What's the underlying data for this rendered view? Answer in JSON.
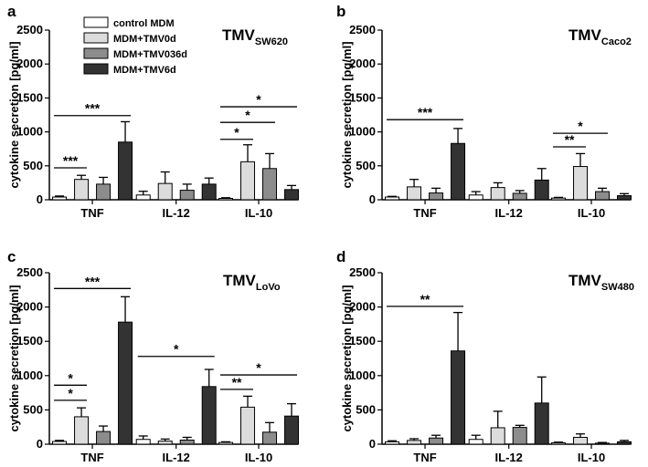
{
  "figure": {
    "colors": [
      "#ffffff",
      "#dcdcdc",
      "#8c8c8c",
      "#333333"
    ]
  },
  "legend": [
    "control MDM",
    "MDM+TMV0d",
    "MDM+TMV036d",
    "MDM+TMV6d"
  ],
  "chart_data": [
    {
      "type": "bar",
      "panel_label": "a",
      "title_main": "TMV",
      "title_sub": "SW620",
      "ylabel": "cytokine secretion [pg/ml]",
      "ylim": [
        0,
        2500
      ],
      "yticks": [
        "0",
        "500",
        "1000",
        "1500",
        "2000",
        "2500"
      ],
      "categories": [
        "TNF",
        "IL-12",
        "IL-10"
      ],
      "series": [
        {
          "name": "control MDM",
          "values": [
            40,
            70,
            20
          ],
          "errors": [
            15,
            55,
            10
          ]
        },
        {
          "name": "MDM+TMV0d",
          "values": [
            300,
            240,
            560
          ],
          "errors": [
            60,
            170,
            250
          ]
        },
        {
          "name": "MDM+TMV036d",
          "values": [
            230,
            140,
            460
          ],
          "errors": [
            100,
            90,
            220
          ]
        },
        {
          "name": "MDM+TMV6d",
          "values": [
            850,
            230,
            150
          ],
          "errors": [
            300,
            90,
            60
          ]
        }
      ],
      "significance": [
        {
          "group": 0,
          "from": 0,
          "to": 1,
          "label": "***",
          "y": 470
        },
        {
          "group": 0,
          "from": 0,
          "to": 3,
          "label": "***",
          "y": 1240
        },
        {
          "group": 2,
          "from": 0,
          "to": 1,
          "label": "*",
          "y": 890
        },
        {
          "group": 2,
          "from": 0,
          "to": 2,
          "label": "*",
          "y": 1140
        },
        {
          "group": 2,
          "from": 0,
          "to": 3,
          "label": "*",
          "y": 1370
        }
      ]
    },
    {
      "type": "bar",
      "panel_label": "b",
      "title_main": "TMV",
      "title_sub": "Caco2",
      "ylabel": "cytokine secretion [pg/ml]",
      "ylim": [
        0,
        2500
      ],
      "yticks": [
        "0",
        "500",
        "1000",
        "1500",
        "2000",
        "2500"
      ],
      "categories": [
        "TNF",
        "IL-12",
        "IL-10"
      ],
      "series": [
        {
          "name": "control MDM",
          "values": [
            40,
            70,
            25
          ],
          "errors": [
            10,
            50,
            10
          ]
        },
        {
          "name": "MDM+TMV0d",
          "values": [
            190,
            180,
            490
          ],
          "errors": [
            110,
            70,
            190
          ]
        },
        {
          "name": "MDM+TMV036d",
          "values": [
            100,
            95,
            120
          ],
          "errors": [
            70,
            40,
            50
          ]
        },
        {
          "name": "MDM+TMV6d",
          "values": [
            830,
            290,
            60
          ],
          "errors": [
            220,
            170,
            30
          ]
        }
      ],
      "significance": [
        {
          "group": 0,
          "from": 0,
          "to": 3,
          "label": "***",
          "y": 1180
        },
        {
          "group": 2,
          "from": 0,
          "to": 1,
          "label": "**",
          "y": 780
        },
        {
          "group": 2,
          "from": 0,
          "to": 2,
          "label": "*",
          "y": 980
        }
      ]
    },
    {
      "type": "bar",
      "panel_label": "c",
      "title_main": "TMV",
      "title_sub": "LoVo",
      "ylabel": "cytokine secretion [pg/ml]",
      "ylim": [
        0,
        2500
      ],
      "yticks": [
        "0",
        "500",
        "1000",
        "1500",
        "2000",
        "2500"
      ],
      "categories": [
        "TNF",
        "IL-12",
        "IL-10"
      ],
      "series": [
        {
          "name": "control MDM",
          "values": [
            40,
            70,
            25
          ],
          "errors": [
            15,
            50,
            10
          ]
        },
        {
          "name": "MDM+TMV0d",
          "values": [
            400,
            45,
            540
          ],
          "errors": [
            130,
            30,
            160
          ]
        },
        {
          "name": "MDM+TMV036d",
          "values": [
            185,
            60,
            175
          ],
          "errors": [
            80,
            40,
            140
          ]
        },
        {
          "name": "MDM+TMV6d",
          "values": [
            1780,
            840,
            410
          ],
          "errors": [
            370,
            250,
            180
          ]
        }
      ],
      "significance": [
        {
          "group": 0,
          "from": 0,
          "to": 1,
          "label": "*",
          "y": 640
        },
        {
          "group": 0,
          "from": 0,
          "to": 1,
          "label": "*",
          "y": 860
        },
        {
          "group": 0,
          "from": 0,
          "to": 3,
          "label": "***",
          "y": 2270
        },
        {
          "group": 1,
          "from": 0,
          "to": 3,
          "label": "*",
          "y": 1280
        },
        {
          "group": 2,
          "from": 0,
          "to": 1,
          "label": "**",
          "y": 800
        },
        {
          "group": 2,
          "from": 0,
          "to": 3,
          "label": "*",
          "y": 1010
        }
      ]
    },
    {
      "type": "bar",
      "panel_label": "d",
      "title_main": "TMV",
      "title_sub": "SW480",
      "ylabel": "cytokine secretion [pg/ml]",
      "ylim": [
        0,
        2500
      ],
      "yticks": [
        "0",
        "500",
        "1000",
        "1500",
        "2000",
        "2500"
      ],
      "categories": [
        "TNF",
        "IL-12",
        "IL-10"
      ],
      "series": [
        {
          "name": "control MDM",
          "values": [
            35,
            70,
            20
          ],
          "errors": [
            15,
            60,
            10
          ]
        },
        {
          "name": "MDM+TMV0d",
          "values": [
            55,
            240,
            100
          ],
          "errors": [
            25,
            240,
            50
          ]
        },
        {
          "name": "MDM+TMV036d",
          "values": [
            90,
            245,
            15
          ],
          "errors": [
            40,
            30,
            10
          ]
        },
        {
          "name": "MDM+TMV6d",
          "values": [
            1360,
            600,
            35
          ],
          "errors": [
            560,
            380,
            20
          ]
        }
      ],
      "significance": [
        {
          "group": 0,
          "from": 0,
          "to": 3,
          "label": "**",
          "y": 2010
        }
      ]
    }
  ]
}
